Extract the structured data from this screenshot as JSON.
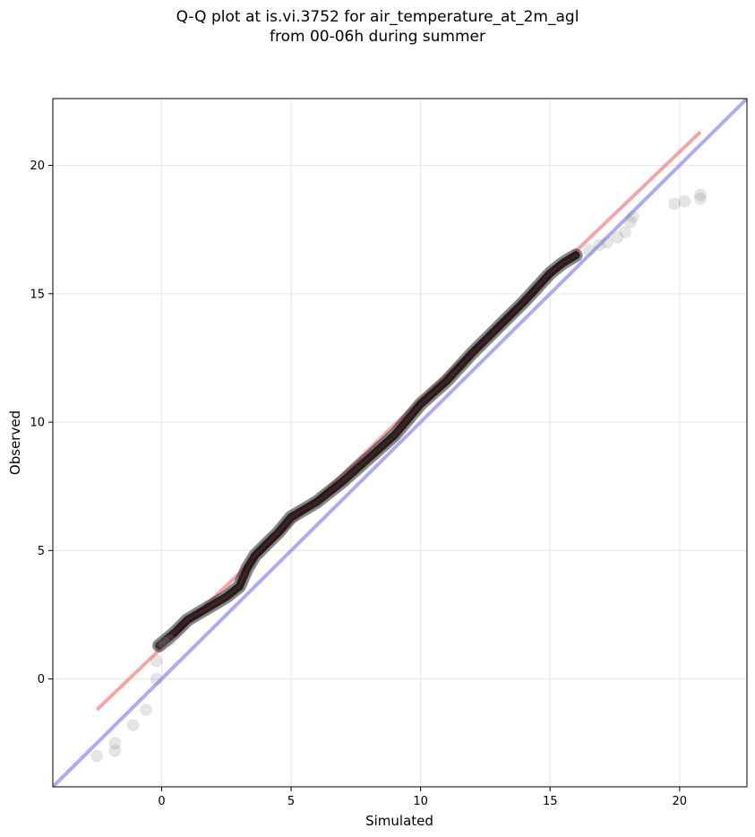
{
  "title": {
    "line1": "Q-Q plot at is.vi.3752 for air_temperature_at_2m_agl",
    "line2": "from 00-06h during summer"
  },
  "chart_data": {
    "type": "scatter",
    "xlabel": "Simulated",
    "ylabel": "Observed",
    "xlim": [
      -4.2,
      22.6
    ],
    "ylim": [
      -4.2,
      22.6
    ],
    "x_ticks": [
      0,
      5,
      10,
      15,
      20
    ],
    "y_ticks": [
      0,
      5,
      10,
      15,
      20
    ],
    "grid": true,
    "colors": {
      "points": "#222222",
      "fit_line": "#f08080",
      "identity_line": "#8080f0",
      "grid": "#e8e8e8"
    },
    "identity_line": {
      "slope": 1,
      "intercept": 0
    },
    "fit_line": {
      "from": [
        -2.5,
        -1.2
      ],
      "to": [
        20.8,
        21.3
      ]
    },
    "quantile_curve": [
      [
        -0.1,
        1.3
      ],
      [
        0.5,
        1.8
      ],
      [
        1.0,
        2.3
      ],
      [
        1.5,
        2.6
      ],
      [
        2.0,
        2.9
      ],
      [
        2.5,
        3.2
      ],
      [
        3.0,
        3.6
      ],
      [
        3.3,
        4.3
      ],
      [
        3.6,
        4.8
      ],
      [
        4.0,
        5.2
      ],
      [
        4.5,
        5.7
      ],
      [
        5.0,
        6.3
      ],
      [
        6.0,
        6.9
      ],
      [
        7.0,
        7.7
      ],
      [
        8.0,
        8.6
      ],
      [
        9.0,
        9.5
      ],
      [
        10.0,
        10.7
      ],
      [
        11.0,
        11.6
      ],
      [
        12.0,
        12.7
      ],
      [
        13.0,
        13.7
      ],
      [
        14.0,
        14.7
      ],
      [
        15.0,
        15.8
      ],
      [
        15.5,
        16.2
      ],
      [
        16.0,
        16.5
      ]
    ],
    "points": [
      [
        -2.5,
        -3.0
      ],
      [
        -1.8,
        -2.8
      ],
      [
        -1.8,
        -2.5
      ],
      [
        -1.1,
        -1.8
      ],
      [
        -0.6,
        -1.2
      ],
      [
        -0.2,
        0.0
      ],
      [
        -0.2,
        0.7
      ],
      [
        -0.1,
        1.3
      ],
      [
        0.1,
        1.4
      ],
      [
        0.3,
        1.5
      ],
      [
        16.5,
        16.7
      ],
      [
        16.9,
        16.9
      ],
      [
        17.2,
        17.0
      ],
      [
        17.6,
        17.2
      ],
      [
        17.9,
        17.4
      ],
      [
        18.1,
        17.8
      ],
      [
        18.2,
        18.0
      ],
      [
        19.8,
        18.5
      ],
      [
        20.2,
        18.6
      ],
      [
        20.8,
        18.7
      ],
      [
        20.8,
        18.85
      ]
    ]
  }
}
